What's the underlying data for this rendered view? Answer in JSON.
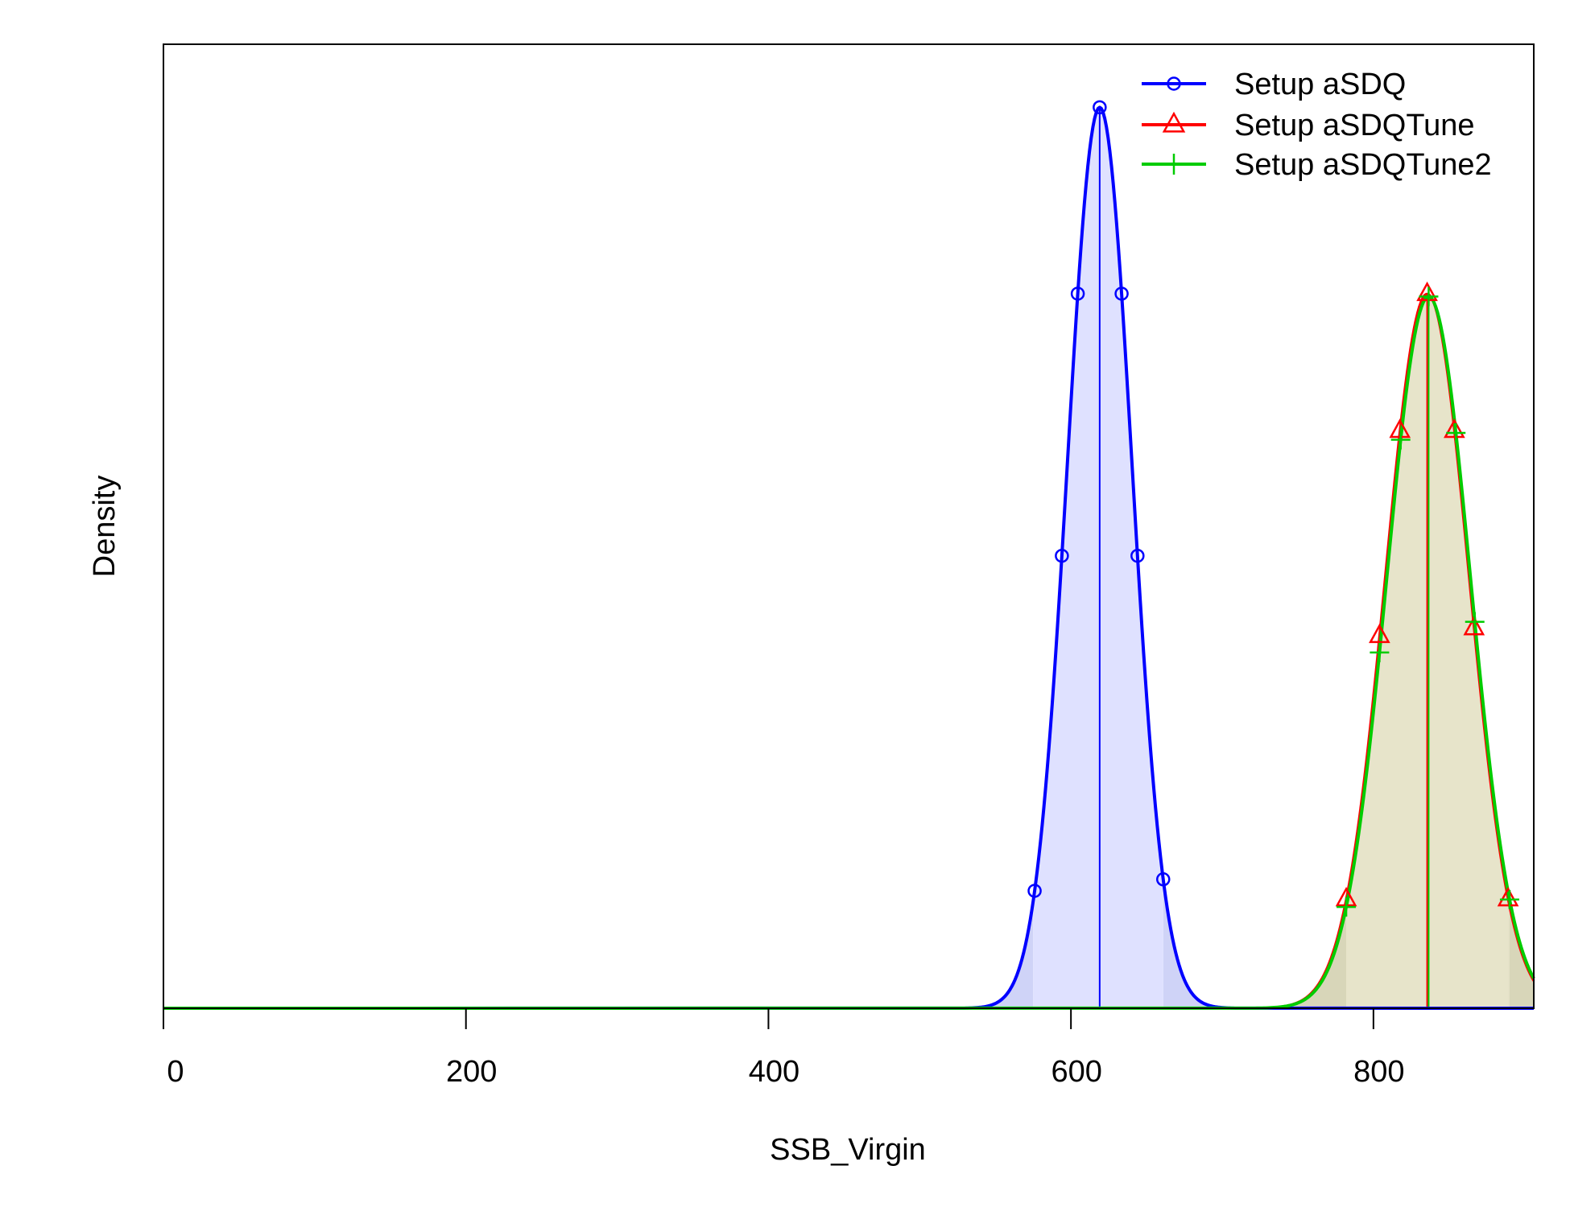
{
  "chart_data": {
    "type": "line",
    "title": "",
    "xlabel": "SSB_Virgin",
    "ylabel": "Density",
    "xlim": [
      0,
      906
    ],
    "ylim": [
      0,
      1.07
    ],
    "x_ticks": [
      0,
      200,
      400,
      600,
      800
    ],
    "x_tick_labels": [
      "0",
      "200",
      "400",
      "600",
      "800"
    ],
    "y_ticks_shown": false,
    "grid": false,
    "legend_position": "top-right",
    "series": [
      {
        "name": "Setup aSDQ",
        "color": "#0000ff",
        "fill": "#dfe1ff",
        "fill_tail": "#cfd3f7",
        "marker": "circle",
        "mean": 619,
        "sd": 21.3,
        "peak": 1.0,
        "interval": [
          575,
          661
        ],
        "marker_x": [
          576,
          594,
          604.5,
          619,
          633.5,
          644,
          661
        ]
      },
      {
        "name": "Setup aSDQTune",
        "color": "#ff0000",
        "fill": "#e6e2c8",
        "fill_tail": "#d6d3b4",
        "marker": "triangle",
        "mean": 835.5,
        "sd": 27.6,
        "peak": 0.793,
        "interval": [
          782,
          889
        ],
        "marker_x": [
          782,
          804,
          817.5,
          835.5,
          853.5,
          866.5,
          889
        ]
      },
      {
        "name": "Setup aSDQTune2",
        "color": "#00cc00",
        "fill": "#e6e2c8",
        "fill_tail": "#d6d3b4",
        "marker": "plus",
        "mean": 836.5,
        "sd": 27.6,
        "peak": 0.79,
        "interval": [
          782,
          890
        ],
        "marker_x": [
          782,
          804,
          818,
          836.5,
          854.5,
          867,
          890
        ]
      }
    ]
  }
}
